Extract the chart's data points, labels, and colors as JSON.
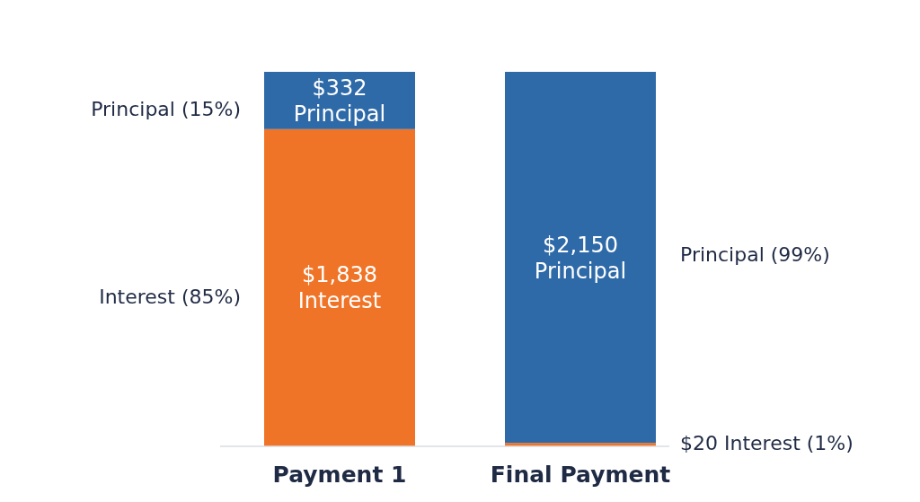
{
  "chart_data": {
    "type": "bar",
    "stacked": true,
    "categories": [
      "Payment 1",
      "Final Payment"
    ],
    "series": [
      {
        "color": "#f07427",
        "values": [
          1838,
          20
        ],
        "value_labels": [
          "$1,838 Interest",
          null
        ]
      },
      {
        "color": "#2f6aa8",
        "values": [
          332,
          2150
        ],
        "value_labels": [
          "$332 Principal",
          "$2,150 Principal"
        ]
      }
    ],
    "annotations": [
      "Principal (15%)",
      "Interest (85%)",
      "Principal (99%)",
      "$20 Interest (1%)"
    ],
    "legend": false
  }
}
